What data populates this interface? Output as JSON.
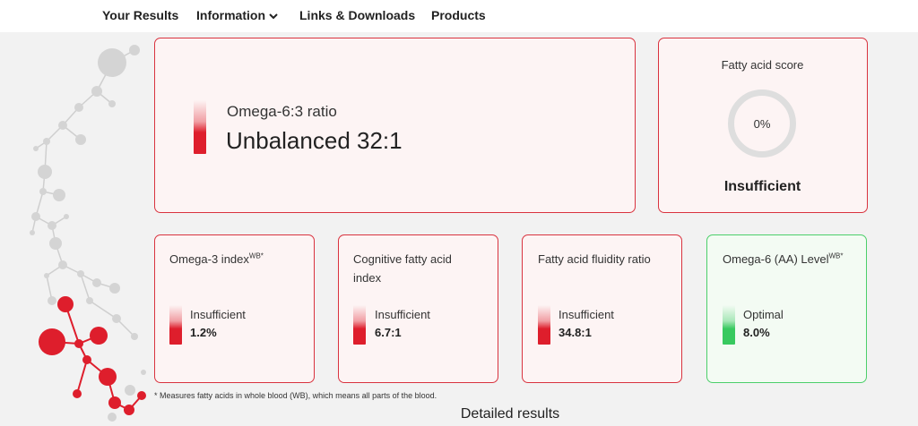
{
  "nav": {
    "items": [
      {
        "label": "Your Results"
      },
      {
        "label": "Information"
      },
      {
        "label": "Links & Downloads"
      },
      {
        "label": "Products"
      }
    ]
  },
  "ratio_card": {
    "label": "Omega-6:3 ratio",
    "value": "Unbalanced 32:1"
  },
  "score_card": {
    "title": "Fatty acid score",
    "percent_text": "0%",
    "percent": 0,
    "status": "Insufficient"
  },
  "metric_cards": [
    {
      "title": "Omega-3 index",
      "superscript": "WB*",
      "status": "Insufficient",
      "value": "1.2%"
    },
    {
      "title": "Cognitive fatty acid index",
      "superscript": "",
      "status": "Insufficient",
      "value": "6.7:1"
    },
    {
      "title": "Fatty acid fluidity ratio",
      "superscript": "",
      "status": "Insufficient",
      "value": "34.8:1"
    },
    {
      "title": "Omega-6 (AA) Level",
      "superscript": "WB*",
      "status": "Optimal",
      "value": "8.0%"
    }
  ],
  "footnote": "* Measures fatty acids in whole blood (WB), which means all parts of the blood.",
  "detailed_heading": "Detailed results",
  "colors": {
    "accent_red": "#de1e2c",
    "accent_green": "#38c95f",
    "card_border_red": "#d9333f",
    "card_border_green": "#4ccf6a"
  }
}
